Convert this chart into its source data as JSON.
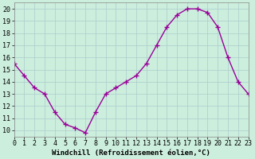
{
  "x": [
    0,
    1,
    2,
    3,
    4,
    5,
    6,
    7,
    8,
    9,
    10,
    11,
    12,
    13,
    14,
    15,
    16,
    17,
    18,
    19,
    20,
    21,
    22,
    23
  ],
  "y": [
    15.5,
    14.5,
    13.5,
    13.0,
    11.5,
    10.5,
    10.2,
    9.8,
    11.5,
    13.0,
    13.5,
    14.0,
    14.5,
    15.5,
    17.0,
    18.5,
    19.5,
    20.0,
    20.0,
    19.7,
    18.5,
    16.0,
    14.0,
    13.0
  ],
  "line_color": "#990099",
  "marker": "+",
  "marker_size": 4,
  "marker_edge_width": 1.0,
  "background_color": "#cceedd",
  "grid_color": "#aacccc",
  "xlabel": "Windchill (Refroidissement éolien,°C)",
  "xlim": [
    0,
    23
  ],
  "ylim": [
    9.5,
    20.5
  ],
  "yticks": [
    10,
    11,
    12,
    13,
    14,
    15,
    16,
    17,
    18,
    19,
    20
  ],
  "xticks": [
    0,
    1,
    2,
    3,
    4,
    5,
    6,
    7,
    8,
    9,
    10,
    11,
    12,
    13,
    14,
    15,
    16,
    17,
    18,
    19,
    20,
    21,
    22,
    23
  ],
  "xlabel_fontsize": 6.5,
  "tick_fontsize": 6.0,
  "line_width": 1.0
}
